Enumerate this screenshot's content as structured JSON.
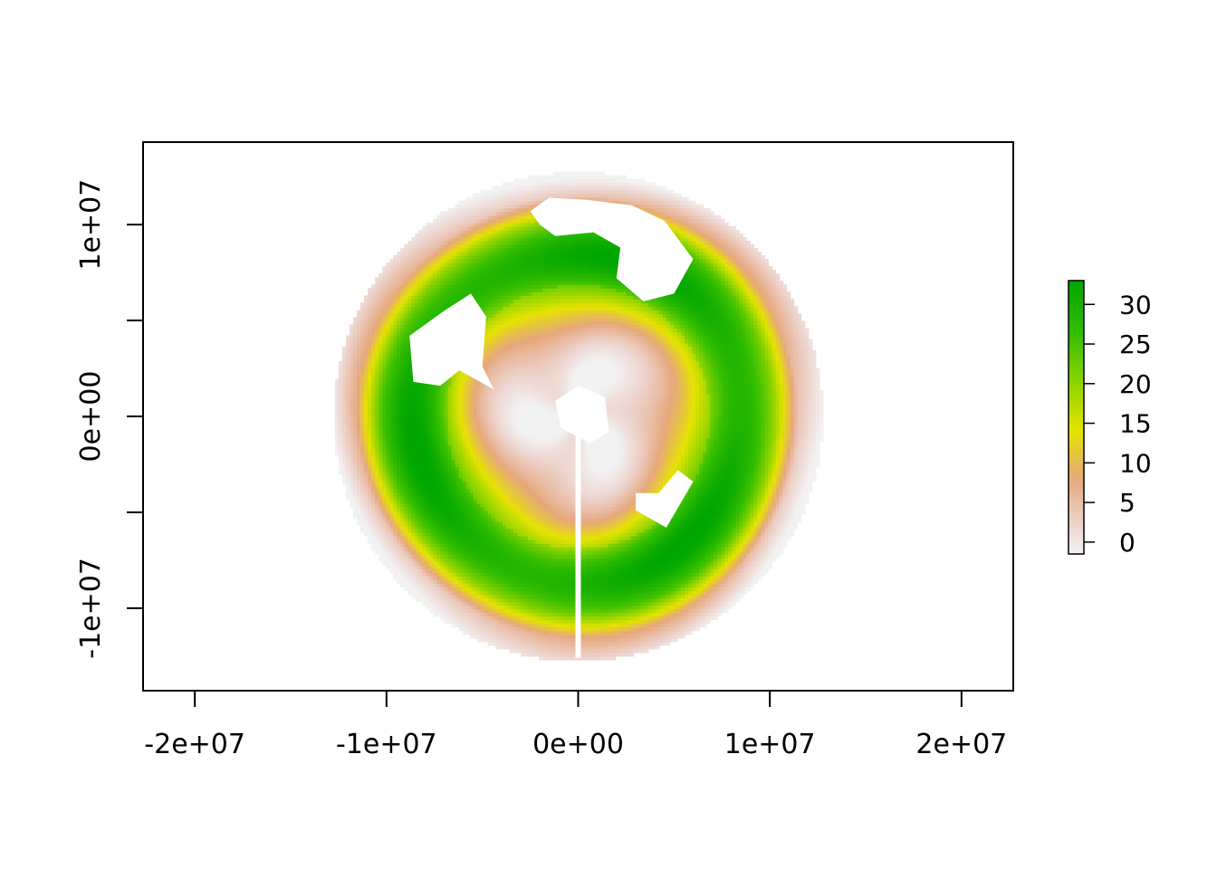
{
  "chart_data": {
    "type": "heatmap",
    "title": "",
    "xlabel": "",
    "ylabel": "",
    "xlim": [
      -22700000,
      22700000
    ],
    "ylim": [
      -14300000,
      14300000
    ],
    "x_ticks": [
      {
        "value": -20000000,
        "label": "-2e+07"
      },
      {
        "value": -10000000,
        "label": "-1e+07"
      },
      {
        "value": 0,
        "label": "0e+00"
      },
      {
        "value": 10000000,
        "label": "1e+07"
      },
      {
        "value": 20000000,
        "label": "2e+07"
      }
    ],
    "y_ticks": [
      {
        "value": -10000000,
        "label": "-1e+07"
      },
      {
        "value": -5000000,
        "label": ""
      },
      {
        "value": 0,
        "label": "0e+00"
      },
      {
        "value": 5000000,
        "label": ""
      },
      {
        "value": 10000000,
        "label": "1e+07"
      }
    ],
    "legend": {
      "placement": "right",
      "min": -1.5,
      "max": 33,
      "ticks": [
        {
          "value": 0,
          "label": "0"
        },
        {
          "value": 5,
          "label": "5"
        },
        {
          "value": 10,
          "label": "10"
        },
        {
          "value": 15,
          "label": "15"
        },
        {
          "value": 20,
          "label": "20"
        },
        {
          "value": 25,
          "label": "25"
        },
        {
          "value": 30,
          "label": "30"
        }
      ]
    },
    "colors": {
      "low": "#f2f2f2",
      "pink": "#eccfc6",
      "salmon": "#e6a77c",
      "yellow": "#e6e300",
      "lightgreen": "#8fd400",
      "green": "#38bf00",
      "high": "#00a600"
    },
    "field": {
      "center": [
        0,
        0
      ],
      "radius": 12500000,
      "description_values": "value rises from about 0 near the centre, peaks near 30 in a mid ring and falls to near 0 at the outer edge"
    }
  }
}
